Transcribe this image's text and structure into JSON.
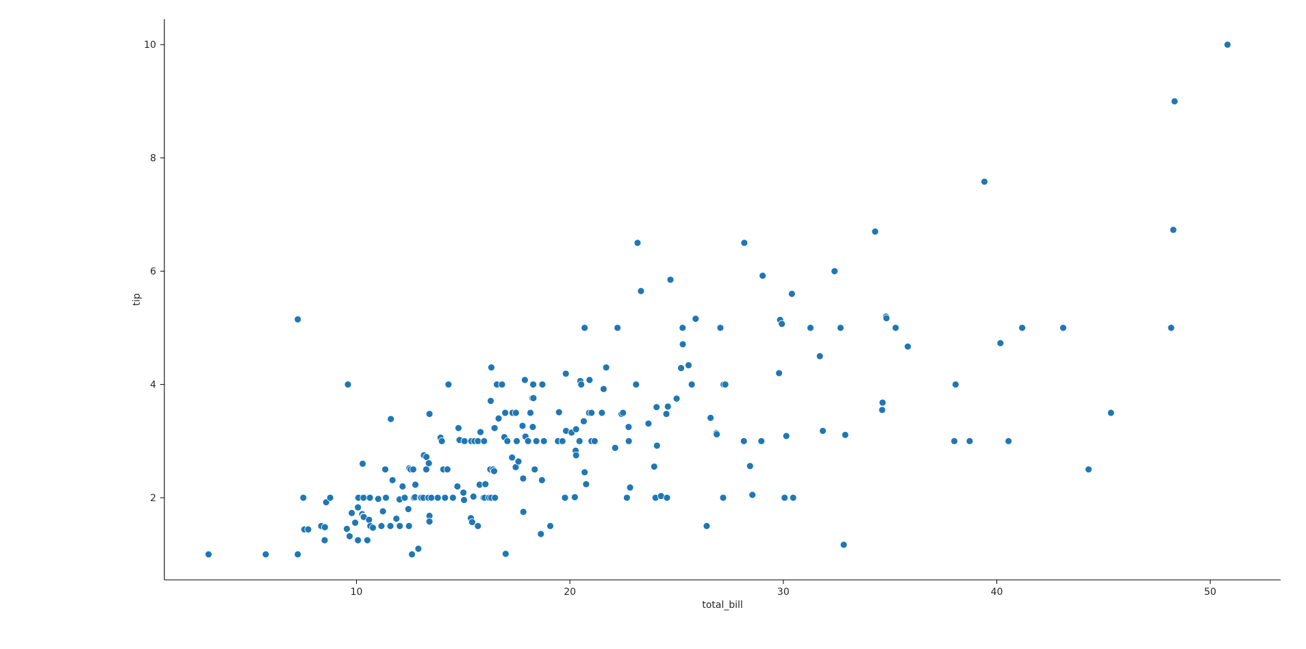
{
  "chart_data": {
    "type": "scatter",
    "xlabel": "total_bill",
    "ylabel": "tip",
    "xlim": [
      1.0,
      53.3
    ],
    "ylim": [
      0.55,
      10.45
    ],
    "xticks": [
      10,
      20,
      30,
      40,
      50
    ],
    "yticks": [
      2,
      4,
      6,
      8,
      10
    ],
    "grid": false,
    "point_color": "#1f77b4",
    "points": [
      [
        3.07,
        1.0
      ],
      [
        5.75,
        1.0
      ],
      [
        7.25,
        1.0
      ],
      [
        7.25,
        5.15
      ],
      [
        7.51,
        2.0
      ],
      [
        7.56,
        1.44
      ],
      [
        7.74,
        1.44
      ],
      [
        8.35,
        1.5
      ],
      [
        8.51,
        1.25
      ],
      [
        8.52,
        1.48
      ],
      [
        8.58,
        1.92
      ],
      [
        8.77,
        2.0
      ],
      [
        9.55,
        1.45
      ],
      [
        9.6,
        4.0
      ],
      [
        9.68,
        1.32
      ],
      [
        9.78,
        1.73
      ],
      [
        9.94,
        1.56
      ],
      [
        10.07,
        1.83
      ],
      [
        10.07,
        1.25
      ],
      [
        10.09,
        2.0
      ],
      [
        10.27,
        1.71
      ],
      [
        10.29,
        2.6
      ],
      [
        10.33,
        1.67
      ],
      [
        10.33,
        2.0
      ],
      [
        10.34,
        1.66
      ],
      [
        10.51,
        1.25
      ],
      [
        10.59,
        1.61
      ],
      [
        10.63,
        2.0
      ],
      [
        10.65,
        1.5
      ],
      [
        10.77,
        1.47
      ],
      [
        11.02,
        1.98
      ],
      [
        11.17,
        1.5
      ],
      [
        11.24,
        1.76
      ],
      [
        11.35,
        2.5
      ],
      [
        11.38,
        2.0
      ],
      [
        11.59,
        1.5
      ],
      [
        11.61,
        3.39
      ],
      [
        11.69,
        2.31
      ],
      [
        11.87,
        1.63
      ],
      [
        12.02,
        1.97
      ],
      [
        12.03,
        1.5
      ],
      [
        12.16,
        2.2
      ],
      [
        12.26,
        2.0
      ],
      [
        12.43,
        1.8
      ],
      [
        12.46,
        1.5
      ],
      [
        12.48,
        2.52
      ],
      [
        12.54,
        2.5
      ],
      [
        12.6,
        1.0
      ],
      [
        12.66,
        2.5
      ],
      [
        12.69,
        2.0
      ],
      [
        12.74,
        2.01
      ],
      [
        12.76,
        2.23
      ],
      [
        12.9,
        1.1
      ],
      [
        13.0,
        2.0
      ],
      [
        13.03,
        2.0
      ],
      [
        13.13,
        2.0
      ],
      [
        13.16,
        2.75
      ],
      [
        13.27,
        2.5
      ],
      [
        13.28,
        2.72
      ],
      [
        13.37,
        2.0
      ],
      [
        13.39,
        2.61
      ],
      [
        13.42,
        1.68
      ],
      [
        13.42,
        3.48
      ],
      [
        13.42,
        1.58
      ],
      [
        13.51,
        2.0
      ],
      [
        13.81,
        2.0
      ],
      [
        13.94,
        3.06
      ],
      [
        14.0,
        3.0
      ],
      [
        14.07,
        2.5
      ],
      [
        14.15,
        2.0
      ],
      [
        14.26,
        2.5
      ],
      [
        14.31,
        4.0
      ],
      [
        14.52,
        2.0
      ],
      [
        14.73,
        2.2
      ],
      [
        14.78,
        3.23
      ],
      [
        14.83,
        3.02
      ],
      [
        15.01,
        2.09
      ],
      [
        15.04,
        1.96
      ],
      [
        15.06,
        3.0
      ],
      [
        15.36,
        1.64
      ],
      [
        15.38,
        3.0
      ],
      [
        15.42,
        1.57
      ],
      [
        15.48,
        2.02
      ],
      [
        15.53,
        3.0
      ],
      [
        15.69,
        1.5
      ],
      [
        15.69,
        3.0
      ],
      [
        15.77,
        2.23
      ],
      [
        15.81,
        3.16
      ],
      [
        15.95,
        2.0
      ],
      [
        15.98,
        3.0
      ],
      [
        16.0,
        2.0
      ],
      [
        16.04,
        2.24
      ],
      [
        16.21,
        2.0
      ],
      [
        16.27,
        2.5
      ],
      [
        16.29,
        3.71
      ],
      [
        16.31,
        2.0
      ],
      [
        16.32,
        4.3
      ],
      [
        16.4,
        2.5
      ],
      [
        16.45,
        2.47
      ],
      [
        16.47,
        3.23
      ],
      [
        16.49,
        2.0
      ],
      [
        16.58,
        4.0
      ],
      [
        16.66,
        3.4
      ],
      [
        16.82,
        4.0
      ],
      [
        16.93,
        3.07
      ],
      [
        16.97,
        3.5
      ],
      [
        16.99,
        1.01
      ],
      [
        17.07,
        3.0
      ],
      [
        17.29,
        2.71
      ],
      [
        17.31,
        3.5
      ],
      [
        17.46,
        2.54
      ],
      [
        17.47,
        3.5
      ],
      [
        17.51,
        3.0
      ],
      [
        17.59,
        2.64
      ],
      [
        17.78,
        3.27
      ],
      [
        17.81,
        2.34
      ],
      [
        17.82,
        1.75
      ],
      [
        17.89,
        4.08
      ],
      [
        17.92,
        3.08
      ],
      [
        18.04,
        3.0
      ],
      [
        18.15,
        3.5
      ],
      [
        18.24,
        3.76
      ],
      [
        18.26,
        3.25
      ],
      [
        18.28,
        4.0
      ],
      [
        18.29,
        3.76
      ],
      [
        18.35,
        2.5
      ],
      [
        18.43,
        3.0
      ],
      [
        18.64,
        1.36
      ],
      [
        18.69,
        2.31
      ],
      [
        18.71,
        4.0
      ],
      [
        18.78,
        3.0
      ],
      [
        19.08,
        1.5
      ],
      [
        19.44,
        3.0
      ],
      [
        19.49,
        3.51
      ],
      [
        19.65,
        3.0
      ],
      [
        19.77,
        2.0
      ],
      [
        19.81,
        4.19
      ],
      [
        19.82,
        3.18
      ],
      [
        20.08,
        3.15
      ],
      [
        20.23,
        2.01
      ],
      [
        20.27,
        2.83
      ],
      [
        20.29,
        2.75
      ],
      [
        20.29,
        3.21
      ],
      [
        20.45,
        3.0
      ],
      [
        20.49,
        4.06
      ],
      [
        20.53,
        4.0
      ],
      [
        20.65,
        3.35
      ],
      [
        20.69,
        2.45
      ],
      [
        20.69,
        5.0
      ],
      [
        20.76,
        2.24
      ],
      [
        20.9,
        3.5
      ],
      [
        20.92,
        4.08
      ],
      [
        21.01,
        3.5
      ],
      [
        21.01,
        3.0
      ],
      [
        21.16,
        3.0
      ],
      [
        21.5,
        3.5
      ],
      [
        21.58,
        3.92
      ],
      [
        21.7,
        4.3
      ],
      [
        22.12,
        2.88
      ],
      [
        22.23,
        5.0
      ],
      [
        22.42,
        3.48
      ],
      [
        22.49,
        3.5
      ],
      [
        22.67,
        2.0
      ],
      [
        22.75,
        3.25
      ],
      [
        22.76,
        3.0
      ],
      [
        22.82,
        2.18
      ],
      [
        23.1,
        4.0
      ],
      [
        23.17,
        6.5
      ],
      [
        23.33,
        5.65
      ],
      [
        23.68,
        3.31
      ],
      [
        23.95,
        2.55
      ],
      [
        24.01,
        2.0
      ],
      [
        24.06,
        3.6
      ],
      [
        24.08,
        2.92
      ],
      [
        24.27,
        2.03
      ],
      [
        24.52,
        3.48
      ],
      [
        24.55,
        2.0
      ],
      [
        24.59,
        3.61
      ],
      [
        24.71,
        5.85
      ],
      [
        25.0,
        3.75
      ],
      [
        25.21,
        4.29
      ],
      [
        25.28,
        5.0
      ],
      [
        25.29,
        4.71
      ],
      [
        25.56,
        4.34
      ],
      [
        25.71,
        4.0
      ],
      [
        25.89,
        5.16
      ],
      [
        26.41,
        1.5
      ],
      [
        26.59,
        3.41
      ],
      [
        26.86,
        3.14
      ],
      [
        26.88,
        3.12
      ],
      [
        27.05,
        5.0
      ],
      [
        27.18,
        2.0
      ],
      [
        27.2,
        4.0
      ],
      [
        27.28,
        4.0
      ],
      [
        28.15,
        3.0
      ],
      [
        28.17,
        6.5
      ],
      [
        28.44,
        2.56
      ],
      [
        28.55,
        2.05
      ],
      [
        28.97,
        3.0
      ],
      [
        29.03,
        5.92
      ],
      [
        29.8,
        4.2
      ],
      [
        29.85,
        5.14
      ],
      [
        29.93,
        5.07
      ],
      [
        30.06,
        2.0
      ],
      [
        30.14,
        3.09
      ],
      [
        30.4,
        5.6
      ],
      [
        30.46,
        2.0
      ],
      [
        31.27,
        5.0
      ],
      [
        31.71,
        4.5
      ],
      [
        31.85,
        3.18
      ],
      [
        32.4,
        6.0
      ],
      [
        32.68,
        5.0
      ],
      [
        32.83,
        1.17
      ],
      [
        32.9,
        3.11
      ],
      [
        34.3,
        6.7
      ],
      [
        34.63,
        3.55
      ],
      [
        34.65,
        3.68
      ],
      [
        34.81,
        5.2
      ],
      [
        34.83,
        5.17
      ],
      [
        35.26,
        5.0
      ],
      [
        35.83,
        4.67
      ],
      [
        38.01,
        3.0
      ],
      [
        38.07,
        4.0
      ],
      [
        38.73,
        3.0
      ],
      [
        39.42,
        7.58
      ],
      [
        40.17,
        4.73
      ],
      [
        40.55,
        3.0
      ],
      [
        41.19,
        5.0
      ],
      [
        43.11,
        5.0
      ],
      [
        44.3,
        2.5
      ],
      [
        45.35,
        3.5
      ],
      [
        48.17,
        5.0
      ],
      [
        48.27,
        6.73
      ],
      [
        48.33,
        9.0
      ],
      [
        50.81,
        10.0
      ]
    ]
  }
}
